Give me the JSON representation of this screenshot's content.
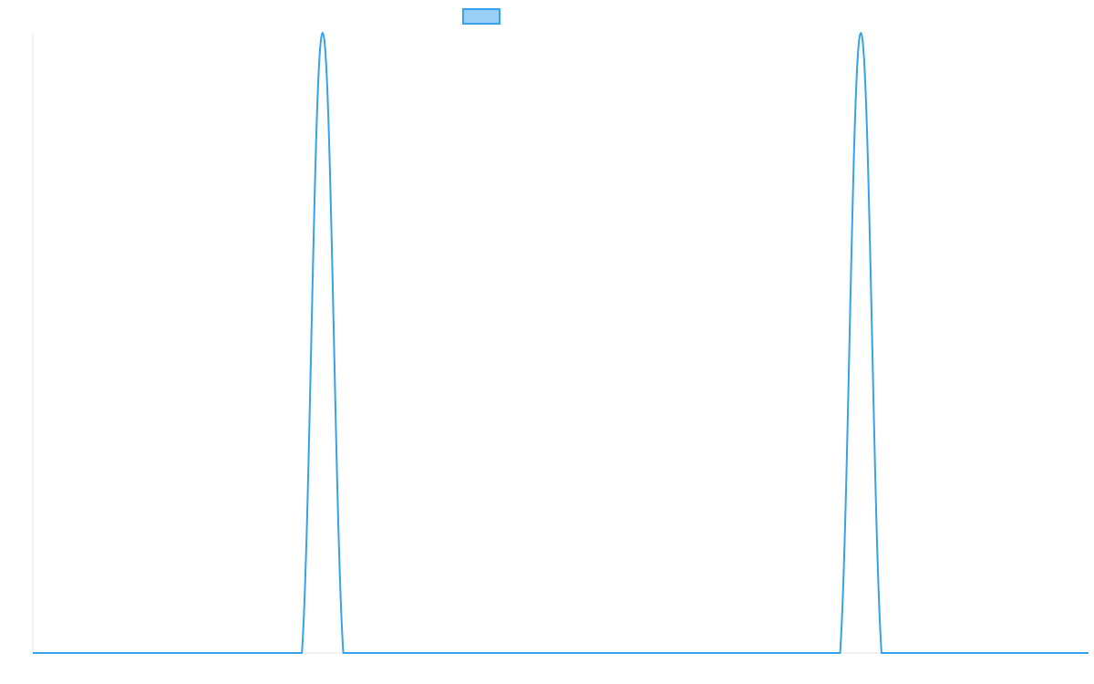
{
  "chart_data": {
    "type": "line",
    "title": "",
    "xlabel": "",
    "ylabel": "",
    "grid": false,
    "legend_placement": "top-center",
    "x": [
      0,
      1,
      2,
      3,
      4,
      5,
      6,
      7,
      8,
      9,
      10,
      11,
      12,
      13,
      14,
      15,
      16,
      17,
      18,
      19,
      20,
      21,
      22,
      23,
      24,
      25,
      26,
      27,
      28,
      29,
      30,
      31,
      32,
      33,
      34,
      35,
      36,
      37,
      38,
      39,
      40,
      41,
      42,
      43,
      44,
      45,
      46,
      47,
      48,
      49,
      50,
      51
    ],
    "xlim": [
      0,
      51
    ],
    "ylim": [
      0,
      1
    ],
    "series": [
      {
        "name": "",
        "color": "#36a2eb",
        "fill": "#9ad0f5",
        "values": [
          0,
          0,
          0,
          0,
          0,
          0,
          0,
          0,
          0,
          0,
          0,
          0,
          0,
          0,
          1,
          0,
          0,
          0,
          0,
          0,
          0,
          0,
          0,
          0,
          0,
          0,
          0,
          0,
          0,
          0,
          0,
          0,
          0,
          0,
          0,
          0,
          0,
          0,
          0,
          0,
          1,
          0,
          0,
          0,
          0,
          0,
          0,
          0,
          0,
          0,
          0,
          0
        ]
      }
    ]
  }
}
